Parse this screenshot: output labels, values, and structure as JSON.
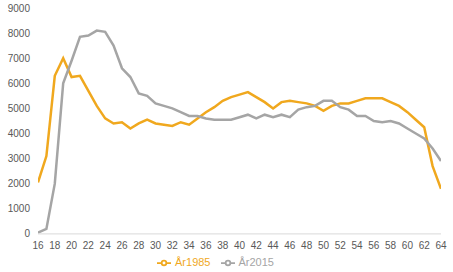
{
  "chart_data": {
    "type": "line",
    "x": [
      16,
      17,
      18,
      19,
      20,
      21,
      22,
      23,
      24,
      25,
      26,
      27,
      28,
      29,
      30,
      31,
      32,
      33,
      34,
      35,
      36,
      37,
      38,
      39,
      40,
      41,
      42,
      43,
      44,
      45,
      46,
      47,
      48,
      49,
      50,
      51,
      52,
      53,
      54,
      55,
      56,
      57,
      58,
      59,
      60,
      61,
      62,
      63,
      64
    ],
    "series": [
      {
        "name": "År1985",
        "color": "#f0a81e",
        "values": [
          2050,
          3100,
          6300,
          7000,
          6250,
          6300,
          5700,
          5100,
          4600,
          4400,
          4450,
          4200,
          4400,
          4550,
          4400,
          4350,
          4300,
          4450,
          4350,
          4600,
          4850,
          5050,
          5300,
          5450,
          5550,
          5650,
          5450,
          5250,
          5000,
          5250,
          5300,
          5250,
          5200,
          5100,
          4900,
          5100,
          5200,
          5200,
          5300,
          5400,
          5400,
          5400,
          5250,
          5100,
          4850,
          4550,
          4250,
          2700,
          1800
        ]
      },
      {
        "name": "År2015",
        "color": "#a5a5a5",
        "values": [
          50,
          200,
          2000,
          6000,
          6900,
          7850,
          7900,
          8100,
          8050,
          7500,
          6600,
          6250,
          5600,
          5500,
          5200,
          5100,
          5000,
          4850,
          4700,
          4700,
          4600,
          4550,
          4550,
          4550,
          4650,
          4750,
          4600,
          4750,
          4650,
          4750,
          4650,
          4950,
          5050,
          5100,
          5300,
          5300,
          5050,
          4950,
          4700,
          4700,
          4500,
          4450,
          4500,
          4400,
          4200,
          4000,
          3800,
          3400,
          2900
        ]
      }
    ],
    "xlim": [
      16,
      64
    ],
    "xticks": [
      16,
      18,
      20,
      22,
      24,
      26,
      28,
      30,
      32,
      34,
      36,
      38,
      40,
      42,
      44,
      46,
      48,
      50,
      52,
      54,
      56,
      58,
      60,
      62,
      64
    ],
    "ylim": [
      0,
      9000
    ],
    "yticks": [
      0,
      1000,
      2000,
      3000,
      4000,
      5000,
      6000,
      7000,
      8000,
      9000
    ],
    "grid": false,
    "legend": "bottom"
  }
}
